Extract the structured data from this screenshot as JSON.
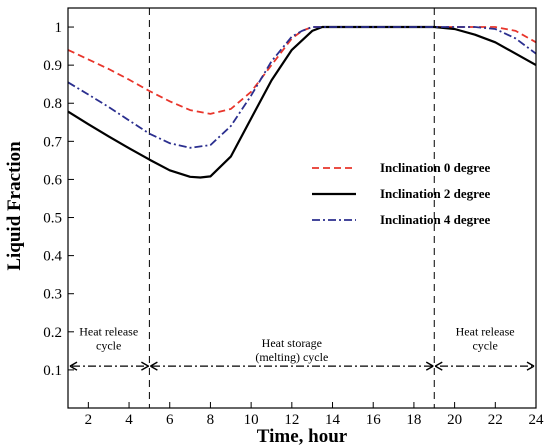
{
  "chart_data": {
    "type": "line",
    "xlabel": "Time, hour",
    "ylabel": "Liquid Fraction",
    "xlim": [
      1,
      24
    ],
    "ylim": [
      0,
      1.05
    ],
    "xticks": [
      2,
      4,
      6,
      8,
      10,
      12,
      14,
      16,
      18,
      20,
      22,
      24
    ],
    "yticks": [
      0.1,
      0.2,
      0.3,
      0.4,
      0.5,
      0.6,
      0.7,
      0.8,
      0.9,
      1
    ],
    "legend_position": "right-middle",
    "series": [
      {
        "name": "Inclination 0 degree",
        "color": "#e8352b",
        "dash": "dashed",
        "x": [
          1,
          2,
          3,
          4,
          5,
          6,
          7,
          8,
          9,
          10,
          11,
          12,
          12.5,
          13,
          14,
          15,
          16,
          17,
          18,
          19,
          20,
          21,
          22,
          23,
          24
        ],
        "y": [
          0.94,
          0.915,
          0.89,
          0.862,
          0.832,
          0.805,
          0.782,
          0.772,
          0.785,
          0.83,
          0.9,
          0.97,
          0.99,
          1.0,
          1.0,
          1.0,
          1.0,
          1.0,
          1.0,
          1.0,
          1.0,
          1.0,
          1.0,
          0.99,
          0.96
        ]
      },
      {
        "name": "Inclination 2 degree",
        "color": "#000000",
        "dash": "solid",
        "x": [
          1,
          2,
          3,
          4,
          5,
          6,
          7,
          7.5,
          8,
          9,
          10,
          11,
          12,
          13,
          13.5,
          14,
          15,
          16,
          17,
          18,
          19,
          20,
          21,
          22,
          23,
          24
        ],
        "y": [
          0.778,
          0.745,
          0.713,
          0.682,
          0.652,
          0.624,
          0.607,
          0.605,
          0.608,
          0.66,
          0.76,
          0.86,
          0.94,
          0.99,
          1.0,
          1.0,
          1.0,
          1.0,
          1.0,
          1.0,
          1.0,
          0.995,
          0.98,
          0.96,
          0.93,
          0.9
        ]
      },
      {
        "name": "Inclination 4 degree",
        "color": "#2b2f8f",
        "dash": "dashdot",
        "x": [
          1,
          2,
          3,
          4,
          5,
          6,
          7,
          8,
          9,
          10,
          11,
          12,
          12.5,
          13,
          14,
          15,
          16,
          17,
          18,
          19,
          20,
          21,
          22,
          23,
          24
        ],
        "y": [
          0.855,
          0.823,
          0.79,
          0.755,
          0.72,
          0.695,
          0.683,
          0.69,
          0.74,
          0.82,
          0.91,
          0.975,
          0.99,
          1.0,
          1.0,
          1.0,
          1.0,
          1.0,
          1.0,
          1.0,
          1.0,
          1.0,
          0.995,
          0.97,
          0.93
        ]
      }
    ],
    "vertical_lines": [
      5,
      19
    ],
    "phase_arrow": {
      "y": 0.11,
      "x_start": 1,
      "x_end": 24
    },
    "annotations": [
      {
        "lines": [
          "Heat release",
          "cycle"
        ],
        "x": 3,
        "y": 0.19
      },
      {
        "lines": [
          "Heat storage",
          "(melting) cycle"
        ],
        "x": 12,
        "y": 0.16
      },
      {
        "lines": [
          "Heat release",
          "cycle"
        ],
        "x": 21.5,
        "y": 0.19
      }
    ]
  }
}
